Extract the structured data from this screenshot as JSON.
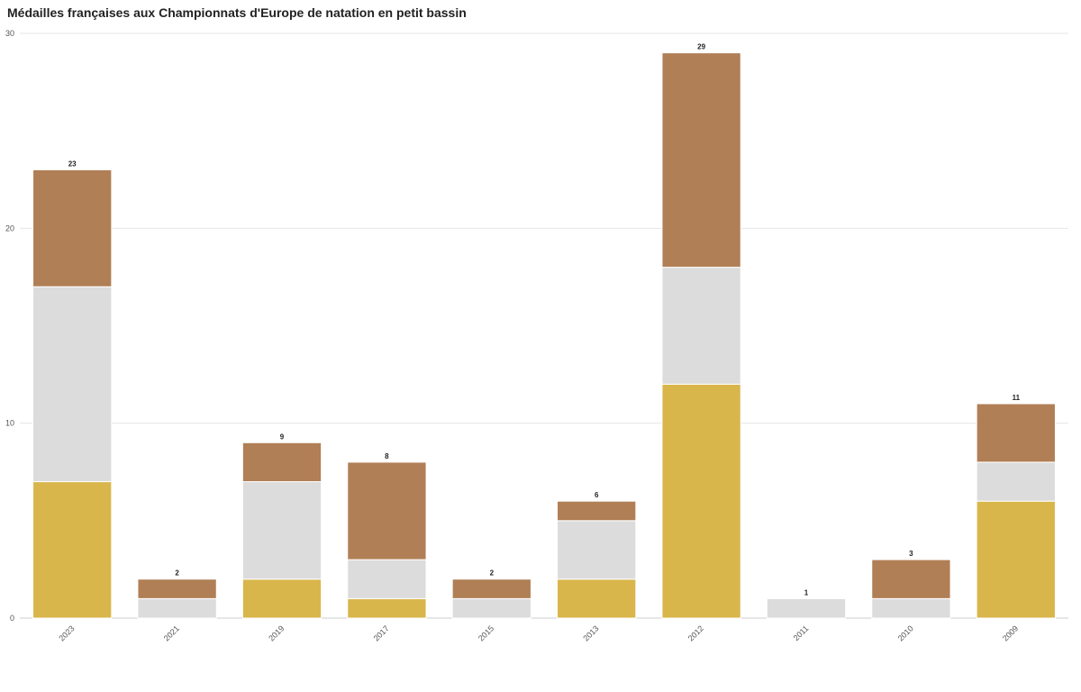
{
  "chart_data": {
    "type": "bar",
    "stacked": true,
    "title": "Médailles françaises aux Championnats d'Europe de natation en petit bassin",
    "xlabel": "",
    "ylabel": "",
    "categories": [
      "2023",
      "2021",
      "2019",
      "2017",
      "2015",
      "2013",
      "2012",
      "2011",
      "2010",
      "2009"
    ],
    "series": [
      {
        "key": "gold",
        "values": [
          7,
          0,
          2,
          1,
          0,
          2,
          12,
          0,
          0,
          6
        ],
        "color": "#d9b64b"
      },
      {
        "key": "silver",
        "values": [
          10,
          1,
          5,
          2,
          1,
          3,
          6,
          1,
          1,
          2
        ],
        "color": "#dcdcdc"
      },
      {
        "key": "bronze",
        "values": [
          6,
          1,
          2,
          5,
          1,
          1,
          11,
          0,
          2,
          3
        ],
        "color": "#b07f55"
      }
    ],
    "totals": [
      23,
      2,
      9,
      8,
      2,
      6,
      29,
      1,
      3,
      11
    ],
    "ylim": [
      0,
      30
    ],
    "yticks": [
      0,
      10,
      20,
      30
    ],
    "grid": true,
    "legend": "none"
  }
}
